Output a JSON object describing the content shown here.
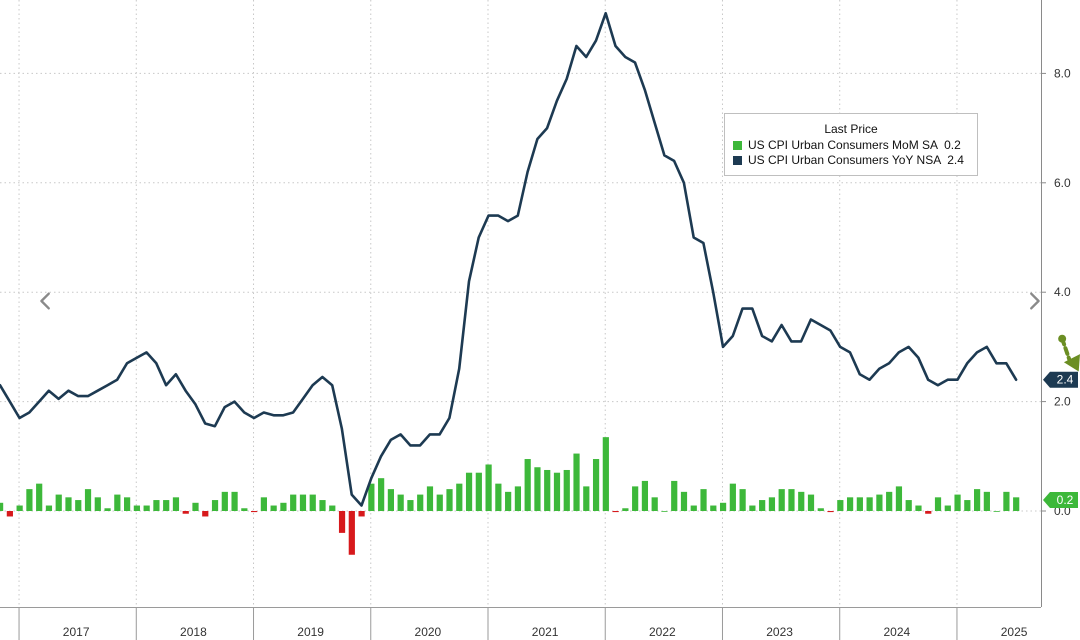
{
  "chart_data": {
    "type": "line",
    "legend": {
      "title": "Last Price",
      "placement": "top-right",
      "entries": [
        {
          "label": "US CPI Urban Consumers MoM SA",
          "value": "0.2",
          "color": "#3db83a"
        },
        {
          "label": "US CPI Urban Consumers YoY NSA",
          "value": "2.4",
          "color": "#1d3a52"
        }
      ]
    },
    "y_axis": {
      "position": "right",
      "ylim": [
        -1.8,
        9.3
      ],
      "ticks": [
        {
          "value": 0,
          "label": "0.0"
        },
        {
          "value": 2,
          "label": "2.0"
        },
        {
          "value": 4,
          "label": "4.0"
        },
        {
          "value": 6,
          "label": "6.0"
        },
        {
          "value": 8,
          "label": "8.0"
        }
      ]
    },
    "x_axis": {
      "start": "2016-11",
      "end": "2025-12",
      "year_labels": [
        "2017",
        "2018",
        "2019",
        "2020",
        "2021",
        "2022",
        "2023",
        "2024",
        "2025"
      ]
    },
    "grid": true,
    "series": [
      {
        "name": "US CPI Urban Consumers YoY NSA",
        "type": "line",
        "color": "#1d3a52",
        "start": "2016-11",
        "values": [
          2.3,
          2.0,
          1.7,
          1.8,
          2.0,
          2.2,
          2.05,
          2.2,
          2.1,
          2.1,
          2.2,
          2.3,
          2.4,
          2.7,
          2.8,
          2.9,
          2.7,
          2.3,
          2.5,
          2.2,
          1.95,
          1.6,
          1.55,
          1.9,
          2.0,
          1.8,
          1.7,
          1.8,
          1.75,
          1.75,
          1.8,
          2.05,
          2.3,
          2.45,
          2.3,
          1.5,
          0.3,
          0.1,
          0.6,
          1.0,
          1.3,
          1.4,
          1.2,
          1.2,
          1.4,
          1.4,
          1.7,
          2.6,
          4.2,
          5.0,
          5.4,
          5.4,
          5.3,
          5.4,
          6.2,
          6.8,
          7.0,
          7.5,
          7.9,
          8.5,
          8.3,
          8.6,
          9.1,
          8.5,
          8.3,
          8.2,
          7.7,
          7.1,
          6.5,
          6.4,
          6.0,
          5.0,
          4.9,
          4.0,
          3.0,
          3.2,
          3.7,
          3.7,
          3.2,
          3.1,
          3.4,
          3.1,
          3.1,
          3.5,
          3.4,
          3.3,
          3.0,
          2.9,
          2.5,
          2.4,
          2.6,
          2.7,
          2.9,
          3.0,
          2.8,
          2.4,
          2.3,
          2.4,
          2.4,
          2.7,
          2.9,
          3.0,
          2.7,
          2.7,
          2.4
        ],
        "last_value": 2.4
      },
      {
        "name": "US CPI Urban Consumers MoM SA",
        "type": "bar",
        "color_positive": "#3db83a",
        "color_negative": "#d7191c",
        "start": "2016-11",
        "values": [
          0.15,
          -0.1,
          0.1,
          0.4,
          0.5,
          0.1,
          0.3,
          0.25,
          0.2,
          0.4,
          0.25,
          0.05,
          0.3,
          0.25,
          0.1,
          0.1,
          0.2,
          0.2,
          0.25,
          -0.05,
          0.15,
          -0.1,
          0.2,
          0.35,
          0.35,
          0.05,
          -0.02,
          0.25,
          0.1,
          0.15,
          0.3,
          0.3,
          0.3,
          0.2,
          0.1,
          -0.4,
          -0.8,
          -0.1,
          0.5,
          0.6,
          0.4,
          0.3,
          0.2,
          0.3,
          0.45,
          0.3,
          0.4,
          0.5,
          0.7,
          0.7,
          0.85,
          0.5,
          0.35,
          0.45,
          0.95,
          0.8,
          0.75,
          0.7,
          0.75,
          1.05,
          0.45,
          0.95,
          1.35,
          -0.02,
          0.05,
          0.45,
          0.55,
          0.25,
          0.0,
          0.55,
          0.35,
          0.1,
          0.4,
          0.1,
          0.15,
          0.5,
          0.4,
          0.1,
          0.2,
          0.25,
          0.4,
          0.4,
          0.35,
          0.3,
          0.05,
          -0.02,
          0.2,
          0.25,
          0.25,
          0.25,
          0.3,
          0.35,
          0.45,
          0.2,
          0.1,
          -0.05,
          0.25,
          0.1,
          0.3,
          0.2,
          0.4,
          0.35,
          0.0,
          0.35,
          0.25
        ],
        "last_value": 0.2
      }
    ],
    "annotations": [
      {
        "type": "trend-arrow",
        "color": "#6b8e23",
        "direction": "down",
        "from": {
          "x": "2025-11",
          "y": 3.15
        },
        "to": {
          "x": "2026-01",
          "y": 2.55
        }
      }
    ],
    "value_tags": [
      {
        "series": "US CPI Urban Consumers YoY NSA",
        "text": "2.4",
        "color": "#1d3a52"
      },
      {
        "series": "US CPI Urban Consumers MoM SA",
        "text": "0.2",
        "color": "#3db83a"
      }
    ]
  },
  "nav": {
    "prev_icon": "chevron-left-icon",
    "next_icon": "chevron-right-icon"
  }
}
